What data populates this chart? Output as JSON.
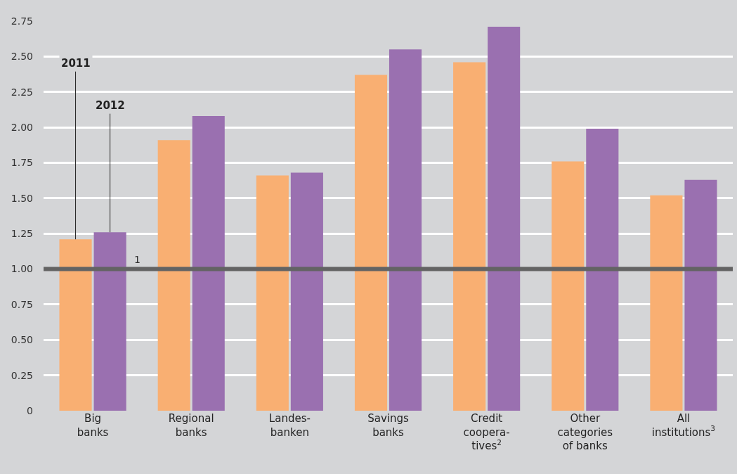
{
  "chart_data": {
    "type": "bar",
    "categories": [
      "Big banks",
      "Regional banks",
      "Landes-banken",
      "Savings banks",
      "Credit coopera-tives$^{2}$",
      "Other categories of banks",
      "All institutions$^{3}$"
    ],
    "series": [
      {
        "name": "2011",
        "color": "#f9af72",
        "values": [
          1.21,
          1.91,
          1.66,
          2.37,
          2.46,
          1.76,
          1.52
        ]
      },
      {
        "name": "2012",
        "color": "#9a70b0",
        "values": [
          1.26,
          2.08,
          1.68,
          2.55,
          2.71,
          1.99,
          1.63
        ]
      }
    ],
    "ylim": [
      0,
      2.75
    ],
    "yticks": [
      0,
      0.25,
      {
        "value": 0.5,
        "label": "0.50"
      },
      {
        "value": 0.75,
        "label": "0.75"
      },
      {
        "value": 1,
        "label": "1.00"
      },
      {
        "value": 1.25,
        "label": "1.25"
      },
      {
        "value": 1.5,
        "label": "1.50"
      },
      {
        "value": 1.75,
        "label": "1.75"
      },
      {
        "value": 2,
        "label": "2.00"
      },
      {
        "value": 2.25,
        "label": "2.25"
      },
      {
        "value": 2.5,
        "label": "2.50"
      },
      {
        "value": 2.75,
        "label": "2.75"
      }
    ],
    "ref_lines": [
      {
        "axis": "y",
        "value": 1,
        "label": "1",
        "color": "#636363"
      }
    ],
    "grid": "y",
    "legend": false
  }
}
